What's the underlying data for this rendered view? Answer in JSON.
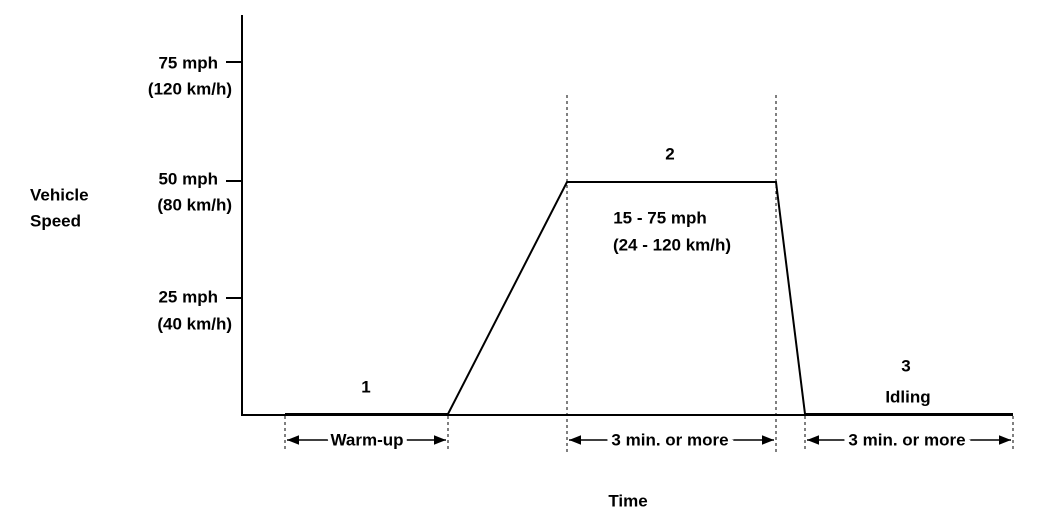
{
  "y_axis": {
    "label_lines": [
      "Vehicle",
      "Speed"
    ],
    "ticks": [
      {
        "mph": "75 mph",
        "kmh": "(120 km/h)"
      },
      {
        "mph": "50 mph",
        "kmh": "(80 km/h)"
      },
      {
        "mph": "25 mph",
        "kmh": "(40 km/h)"
      }
    ]
  },
  "x_axis": {
    "label": "Time"
  },
  "phases": [
    {
      "number": "1",
      "duration": "Warm-up"
    },
    {
      "number": "2",
      "speed_range": "15 - 75 mph",
      "speed_range_metric": "(24 - 120 km/h)",
      "duration": "3 min. or more"
    },
    {
      "number": "3",
      "name": "Idling",
      "duration": "3 min. or more"
    }
  ]
}
